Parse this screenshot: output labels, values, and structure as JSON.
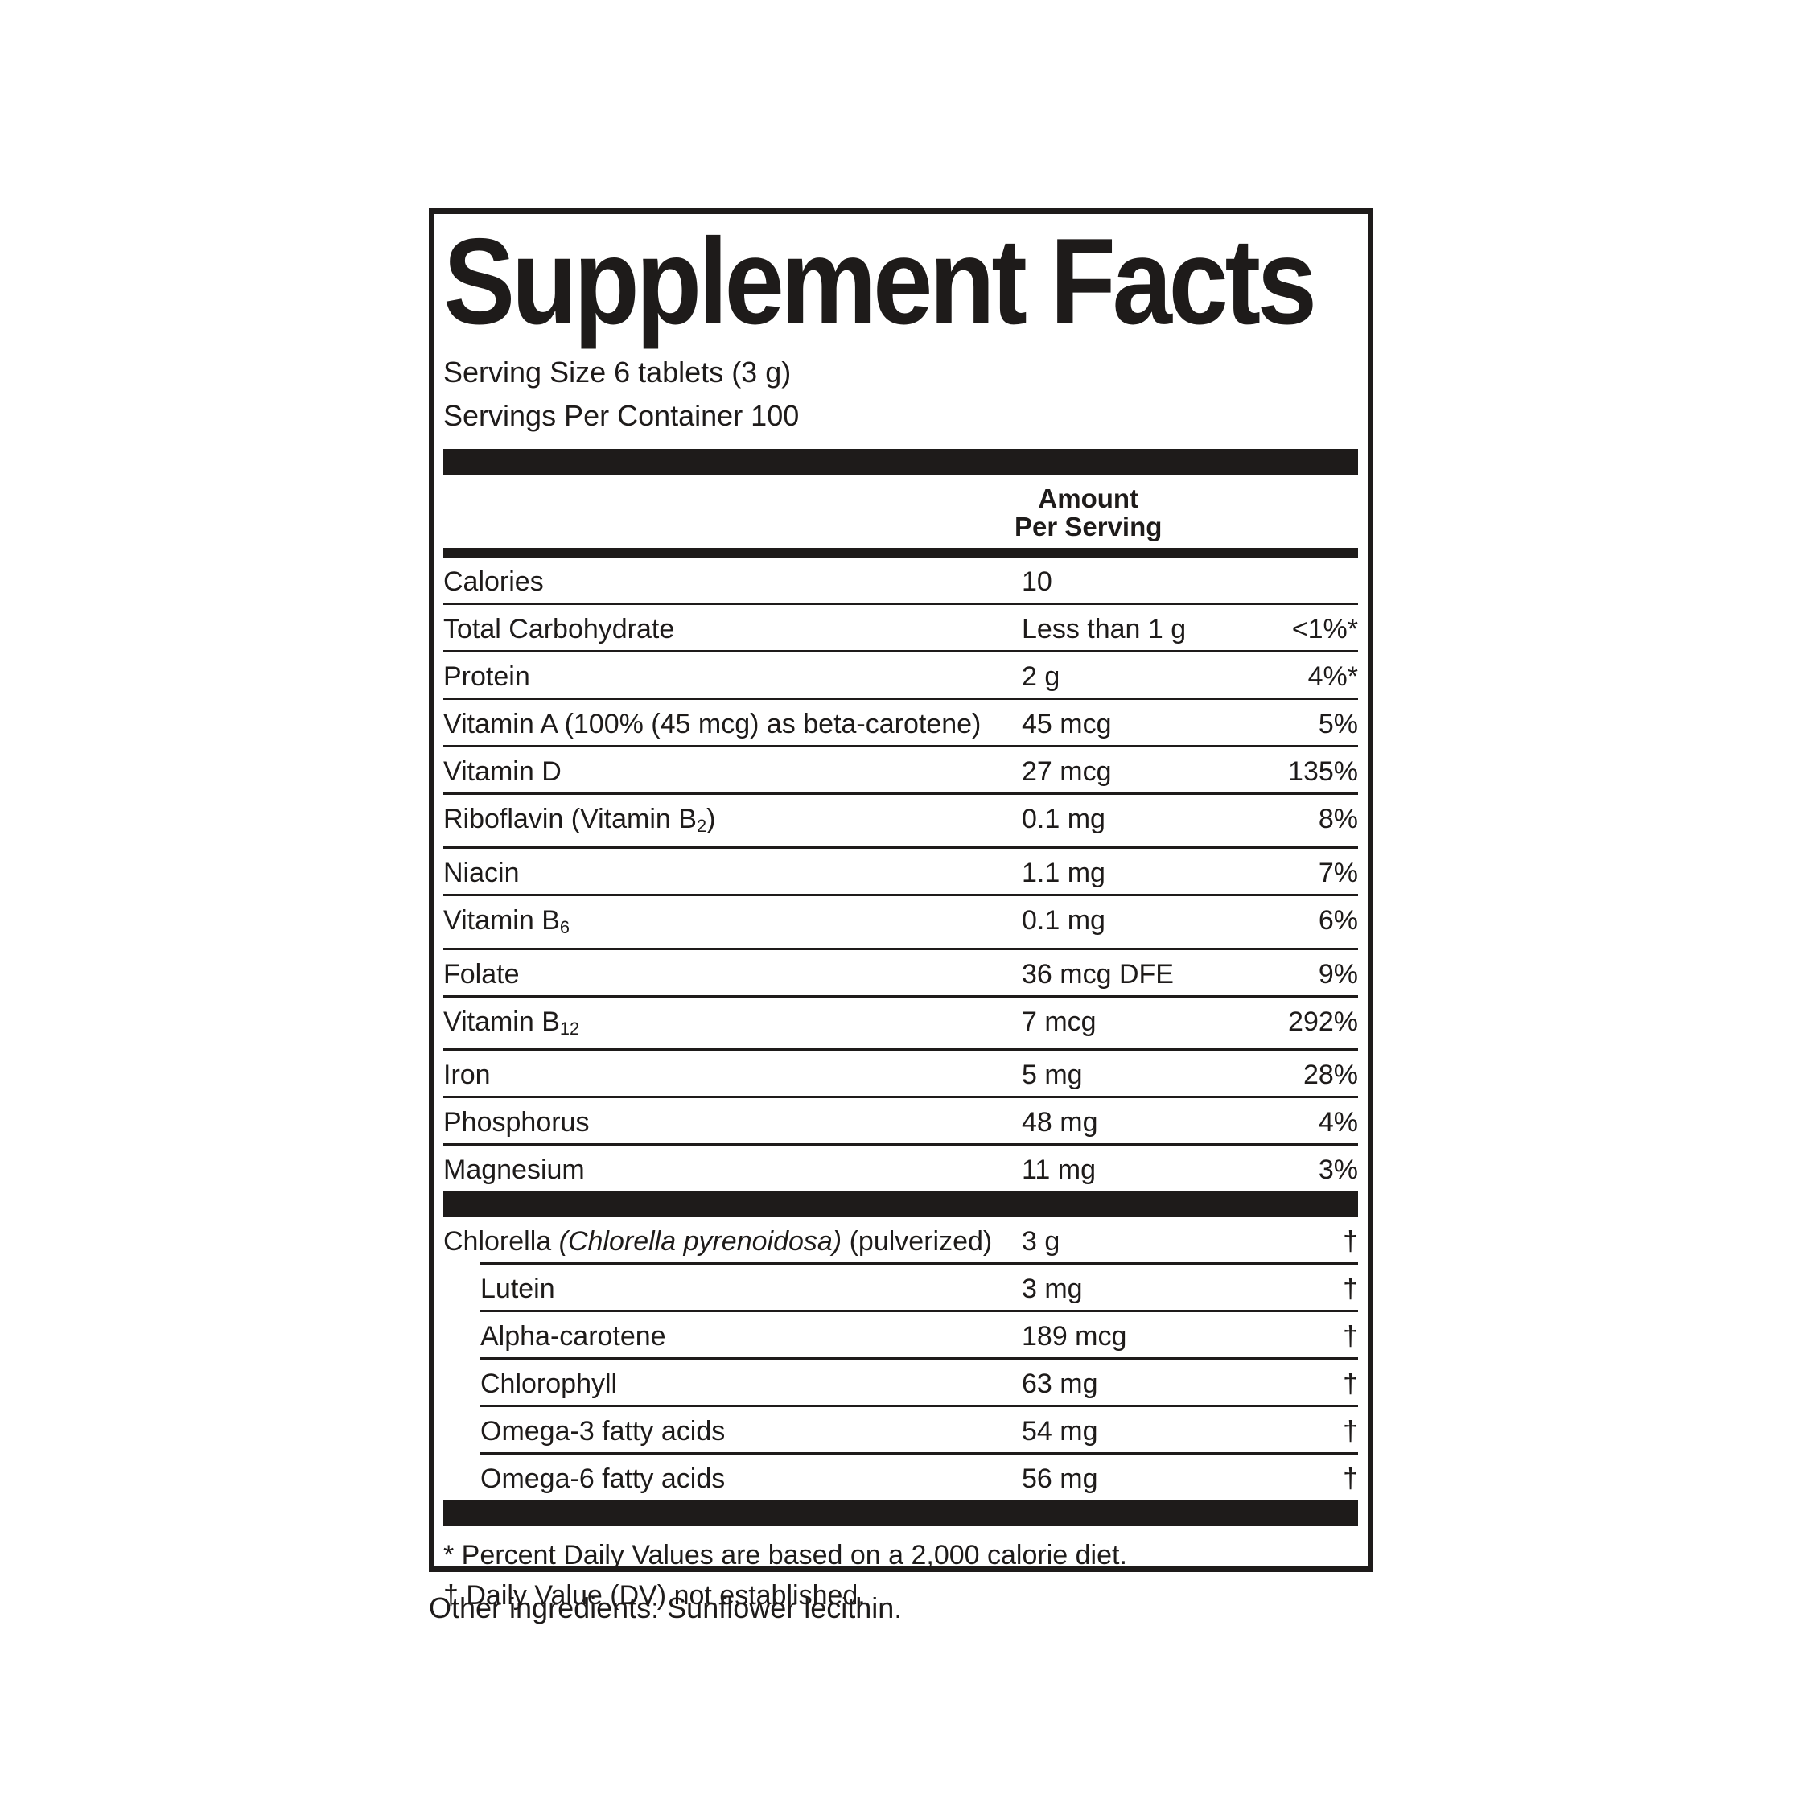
{
  "colors": {
    "ink": "#1e1b1a",
    "paper": "#ffffff"
  },
  "panel": {
    "title": "Supplement Facts",
    "serving_size": "Serving Size 6 tablets (3 g)",
    "servings_per_container": "Servings Per Container 100",
    "column_header": {
      "line1": "Amount",
      "line2": "Per Serving"
    },
    "sections": [
      {
        "id": "nutrients",
        "rows": [
          {
            "name": "Calories",
            "amount": "10",
            "dv": ""
          },
          {
            "name": "Total Carbohydrate",
            "amount": "Less than 1 g",
            "dv": "<1%*"
          },
          {
            "name": "Protein",
            "amount": "2 g",
            "dv": "4%*"
          },
          {
            "name": "Vitamin A (100% (45 mcg) as beta-carotene)",
            "amount": "45 mcg",
            "dv": "5%"
          },
          {
            "name": "Vitamin D",
            "amount": "27 mcg",
            "dv": "135%"
          },
          {
            "name_parts": [
              {
                "t": "Riboflavin (Vitamin B"
              },
              {
                "t": "2",
                "style": "sub"
              },
              {
                "t": ")"
              }
            ],
            "amount": "0.1 mg",
            "dv": "8%"
          },
          {
            "name": "Niacin",
            "amount": "1.1 mg",
            "dv": "7%"
          },
          {
            "name_parts": [
              {
                "t": "Vitamin B"
              },
              {
                "t": "6",
                "style": "sub"
              }
            ],
            "amount": "0.1 mg",
            "dv": "6%"
          },
          {
            "name": "Folate",
            "amount": "36 mcg DFE",
            "dv": "9%"
          },
          {
            "name_parts": [
              {
                "t": "Vitamin B"
              },
              {
                "t": "12",
                "style": "sub"
              }
            ],
            "amount": "7 mcg",
            "dv": "292%"
          },
          {
            "name": "Iron",
            "amount": "5 mg",
            "dv": "28%"
          },
          {
            "name": "Phosphorus",
            "amount": "48 mg",
            "dv": "4%"
          },
          {
            "name": "Magnesium",
            "amount": "11 mg",
            "dv": "3%"
          }
        ]
      },
      {
        "id": "botanicals",
        "rows": [
          {
            "name_parts": [
              {
                "t": "Chlorella "
              },
              {
                "t": "(Chlorella pyrenoidosa)",
                "style": "italic"
              },
              {
                "t": " (pulverized)"
              }
            ],
            "amount": "3 g",
            "dv": "†"
          },
          {
            "name": "Lutein",
            "amount": "3 mg",
            "dv": "†",
            "indent": true
          },
          {
            "name": "Alpha-carotene",
            "amount": "189 mcg",
            "dv": "†",
            "indent": true
          },
          {
            "name": "Chlorophyll",
            "amount": "63 mg",
            "dv": "†",
            "indent": true
          },
          {
            "name": "Omega-3 fatty acids",
            "amount": "54 mg",
            "dv": "†",
            "indent": true
          },
          {
            "name": "Omega-6 fatty acids",
            "amount": "56 mg",
            "dv": "†",
            "indent": true
          }
        ]
      }
    ],
    "footnotes": [
      "* Percent Daily Values are based on a 2,000 calorie diet.",
      "† Daily Value (DV) not established."
    ],
    "other_ingredients": "Other ingredients: Sunflower lecithin."
  }
}
